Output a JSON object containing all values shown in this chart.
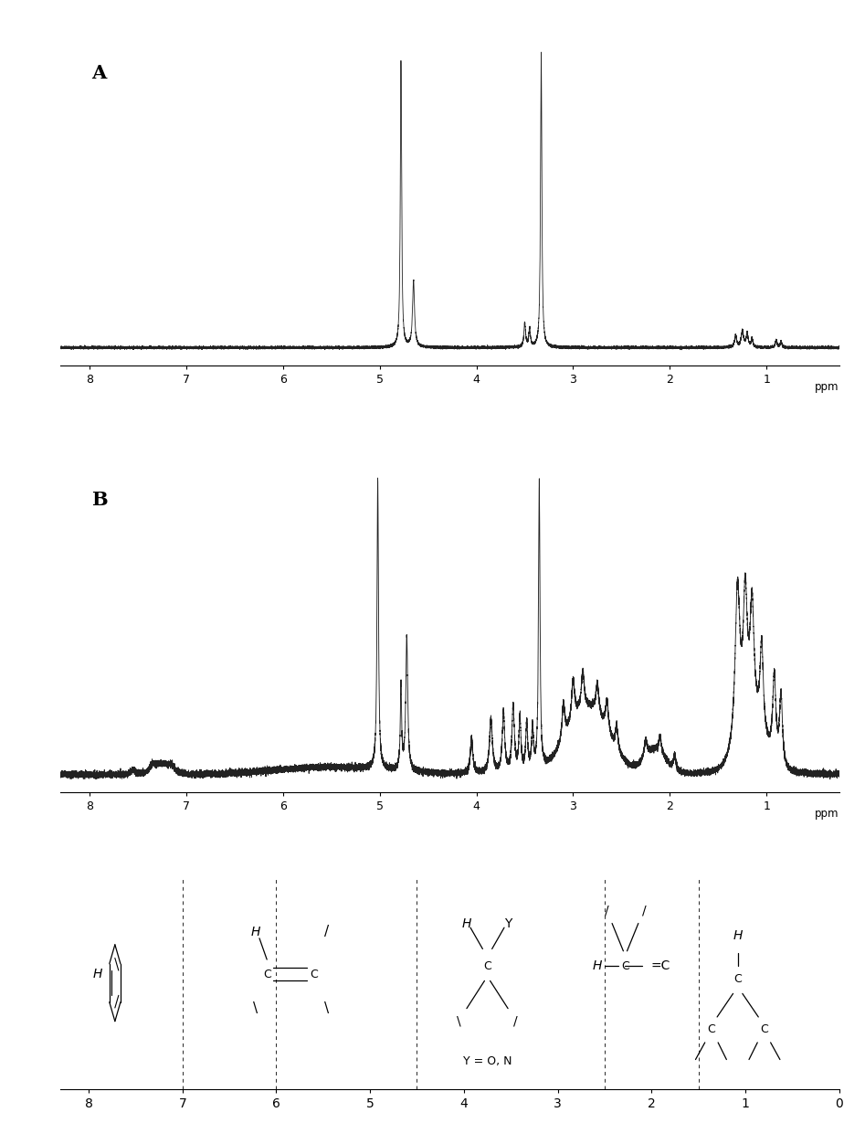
{
  "label_A": "A",
  "label_B": "B",
  "ppm_label": "ppm",
  "x_ticks_spectra": [
    8,
    7,
    6,
    5,
    4,
    3,
    2,
    1
  ],
  "x_ticks_bottom": [
    8,
    7,
    6,
    5,
    4,
    3,
    2,
    1,
    0
  ],
  "x_min": 8.3,
  "x_max": 0.25,
  "background_color": "#ffffff",
  "line_color": "#222222",
  "dashed_lines_x": [
    7.0,
    6.0,
    4.5,
    2.5,
    1.5
  ]
}
